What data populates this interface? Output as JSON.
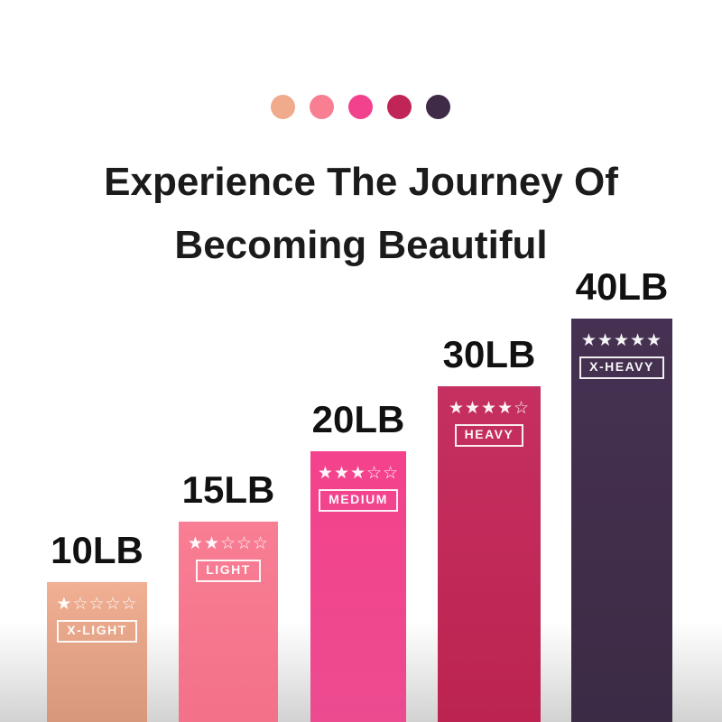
{
  "title": {
    "line1": "Experience The Journey Of",
    "line2": "Becoming Beautiful"
  },
  "dots": [
    "#EFAB8C",
    "#F87E92",
    "#F2418D",
    "#C12457",
    "#3F2A48"
  ],
  "bars": [
    {
      "weight": "10LB",
      "stars": "★☆☆☆☆",
      "level": "X-LIGHT",
      "color_top": "#F1AF93",
      "color_bottom": "#D6977B"
    },
    {
      "weight": "15LB",
      "stars": "★★☆☆☆",
      "level": "LIGHT",
      "color_top": "#F87E94",
      "color_bottom": "#F37189"
    },
    {
      "weight": "20LB",
      "stars": "★★★☆☆",
      "level": "MEDIUM",
      "color_top": "#F4428C",
      "color_bottom": "#EC4B90"
    },
    {
      "weight": "30LB",
      "stars": "★★★★☆",
      "level": "HEAVY",
      "color_top": "#C53061",
      "color_bottom": "#BC2350"
    },
    {
      "weight": "40LB",
      "stars": "★★★★★",
      "level": "X-HEAVY",
      "color_top": "#463152",
      "color_bottom": "#3C2B45"
    }
  ],
  "chart_data": {
    "type": "bar",
    "title": "Experience The Journey Of Becoming Beautiful",
    "categories": [
      "10LB",
      "15LB",
      "20LB",
      "30LB",
      "40LB"
    ],
    "values": [
      10,
      15,
      20,
      30,
      40
    ],
    "value_unit": "LB",
    "star_ratings": [
      1,
      2,
      3,
      4,
      5
    ],
    "resistance_levels": [
      "X-LIGHT",
      "LIGHT",
      "MEDIUM",
      "HEAVY",
      "X-HEAVY"
    ],
    "bar_colors": [
      "#F1AF93",
      "#F87E94",
      "#F4428C",
      "#C53061",
      "#463152"
    ],
    "xlabel": "",
    "ylabel": "",
    "legend": "none",
    "grid": false,
    "axes_shown": false,
    "bars_ascending": true
  }
}
